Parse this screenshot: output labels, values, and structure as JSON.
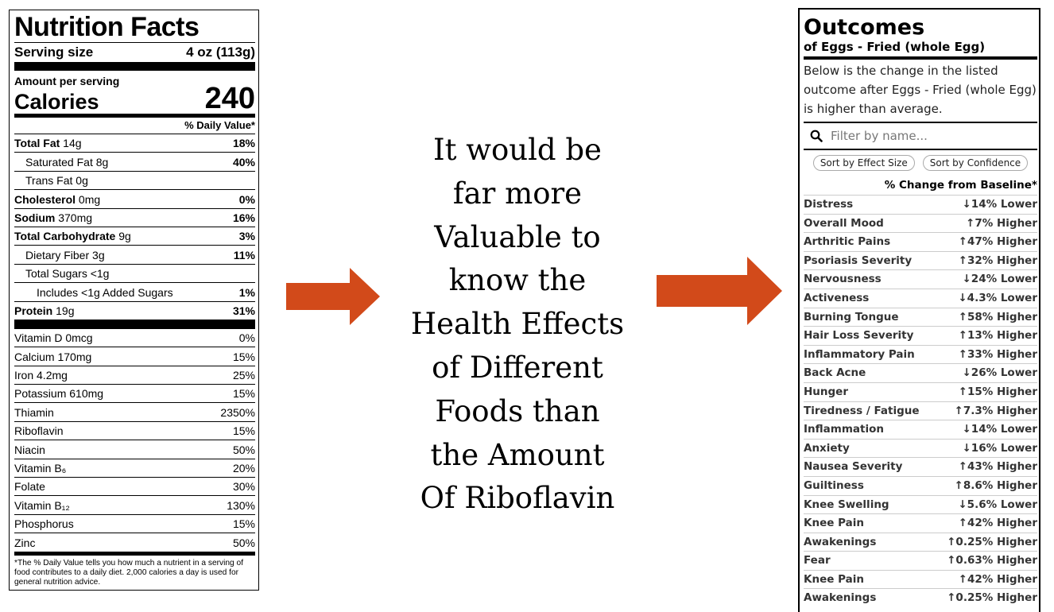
{
  "nutrition": {
    "title": "Nutrition Facts",
    "serving_label": "Serving size",
    "serving_value": "4 oz (113g)",
    "amount_label": "Amount per serving",
    "calories_label": "Calories",
    "calories_value": "240",
    "dv_header": "% Daily Value*",
    "rows": [
      {
        "label": "Total Fat",
        "amount": " 14g",
        "pct": "18%"
      },
      {
        "label": "Saturated Fat",
        "amount": " 8g",
        "pct": "40%"
      },
      {
        "label": "Trans Fat",
        "amount": " 0g",
        "pct": ""
      },
      {
        "label": "Cholesterol",
        "amount": " 0mg",
        "pct": "0%"
      },
      {
        "label": "Sodium",
        "amount": " 370mg",
        "pct": "16%"
      },
      {
        "label": "Total Carbohydrate",
        "amount": " 9g",
        "pct": "3%"
      },
      {
        "label": "Dietary Fiber",
        "amount": " 3g",
        "pct": "11%"
      },
      {
        "label": "Total Sugars",
        "amount": " <1g",
        "pct": ""
      },
      {
        "label": "Includes <1g Added Sugars",
        "amount": "",
        "pct": "1%"
      },
      {
        "label": "Protein",
        "amount": " 19g",
        "pct": "31%"
      }
    ],
    "vitamins": [
      {
        "label": "Vitamin D 0mcg",
        "pct": "0%"
      },
      {
        "label": "Calcium 170mg",
        "pct": "15%"
      },
      {
        "label": "Iron 4.2mg",
        "pct": "25%"
      },
      {
        "label": "Potassium 610mg",
        "pct": "15%"
      },
      {
        "label": "Thiamin",
        "pct": "2350%"
      },
      {
        "label": "Riboflavin",
        "pct": "15%"
      },
      {
        "label": "Niacin",
        "pct": "50%"
      },
      {
        "label": "Vitamin B₆",
        "pct": "20%"
      },
      {
        "label": "Folate",
        "pct": "30%"
      },
      {
        "label": "Vitamin B₁₂",
        "pct": "130%"
      },
      {
        "label": "Phosphorus",
        "pct": "15%"
      },
      {
        "label": "Zinc",
        "pct": "50%"
      }
    ],
    "footnote": "*The % Daily Value tells you how much a nutrient in a serving of food contributes to a daily diet. 2,000 calories a day is used for general nutrition advice."
  },
  "center_text": {
    "lines": [
      "It would be",
      "far more",
      "Valuable to",
      "know the",
      "Health Effects",
      "of Different",
      "Foods than",
      "the Amount",
      "Of Riboflavin"
    ]
  },
  "arrow_color": "#d24a1a",
  "outcomes": {
    "title": "Outcomes",
    "subtitle": "of Eggs - Fried (whole Egg)",
    "description": "Below is the change in the listed outcome after Eggs - Fried (whole Egg) is higher than average.",
    "filter_placeholder": "Filter by name...",
    "sort_effect": "Sort by Effect Size",
    "sort_confidence": "Sort by Confidence",
    "column_header": "% Change from Baseline*",
    "rows": [
      {
        "name": "Distress",
        "value": "↓14% Lower"
      },
      {
        "name": "Overall Mood",
        "value": "↑7% Higher"
      },
      {
        "name": "Arthritic Pains",
        "value": "↑47% Higher"
      },
      {
        "name": "Psoriasis Severity",
        "value": "↑32% Higher"
      },
      {
        "name": "Nervousness",
        "value": "↓24% Lower"
      },
      {
        "name": "Activeness",
        "value": "↓4.3% Lower"
      },
      {
        "name": "Burning Tongue",
        "value": "↑58% Higher"
      },
      {
        "name": "Hair Loss Severity",
        "value": "↑13% Higher"
      },
      {
        "name": "Inflammatory Pain",
        "value": "↑33% Higher"
      },
      {
        "name": "Back Acne",
        "value": "↓26% Lower"
      },
      {
        "name": "Hunger",
        "value": "↑15% Higher"
      },
      {
        "name": "Tiredness / Fatigue",
        "value": "↑7.3% Higher"
      },
      {
        "name": "Inflammation",
        "value": "↓14% Lower"
      },
      {
        "name": "Anxiety",
        "value": "↓16% Lower"
      },
      {
        "name": "Nausea Severity",
        "value": "↑43% Higher"
      },
      {
        "name": "Guiltiness",
        "value": "↑8.6% Higher"
      },
      {
        "name": "Knee Swelling",
        "value": "↓5.6% Lower"
      },
      {
        "name": "Knee Pain",
        "value": "↑42% Higher"
      },
      {
        "name": "Awakenings",
        "value": "↑0.25% Higher"
      },
      {
        "name": "Fear",
        "value": "↑0.63% Higher"
      },
      {
        "name": "Knee Pain",
        "value": "↑42% Higher"
      },
      {
        "name": "Awakenings",
        "value": "↑0.25% Higher"
      }
    ]
  }
}
